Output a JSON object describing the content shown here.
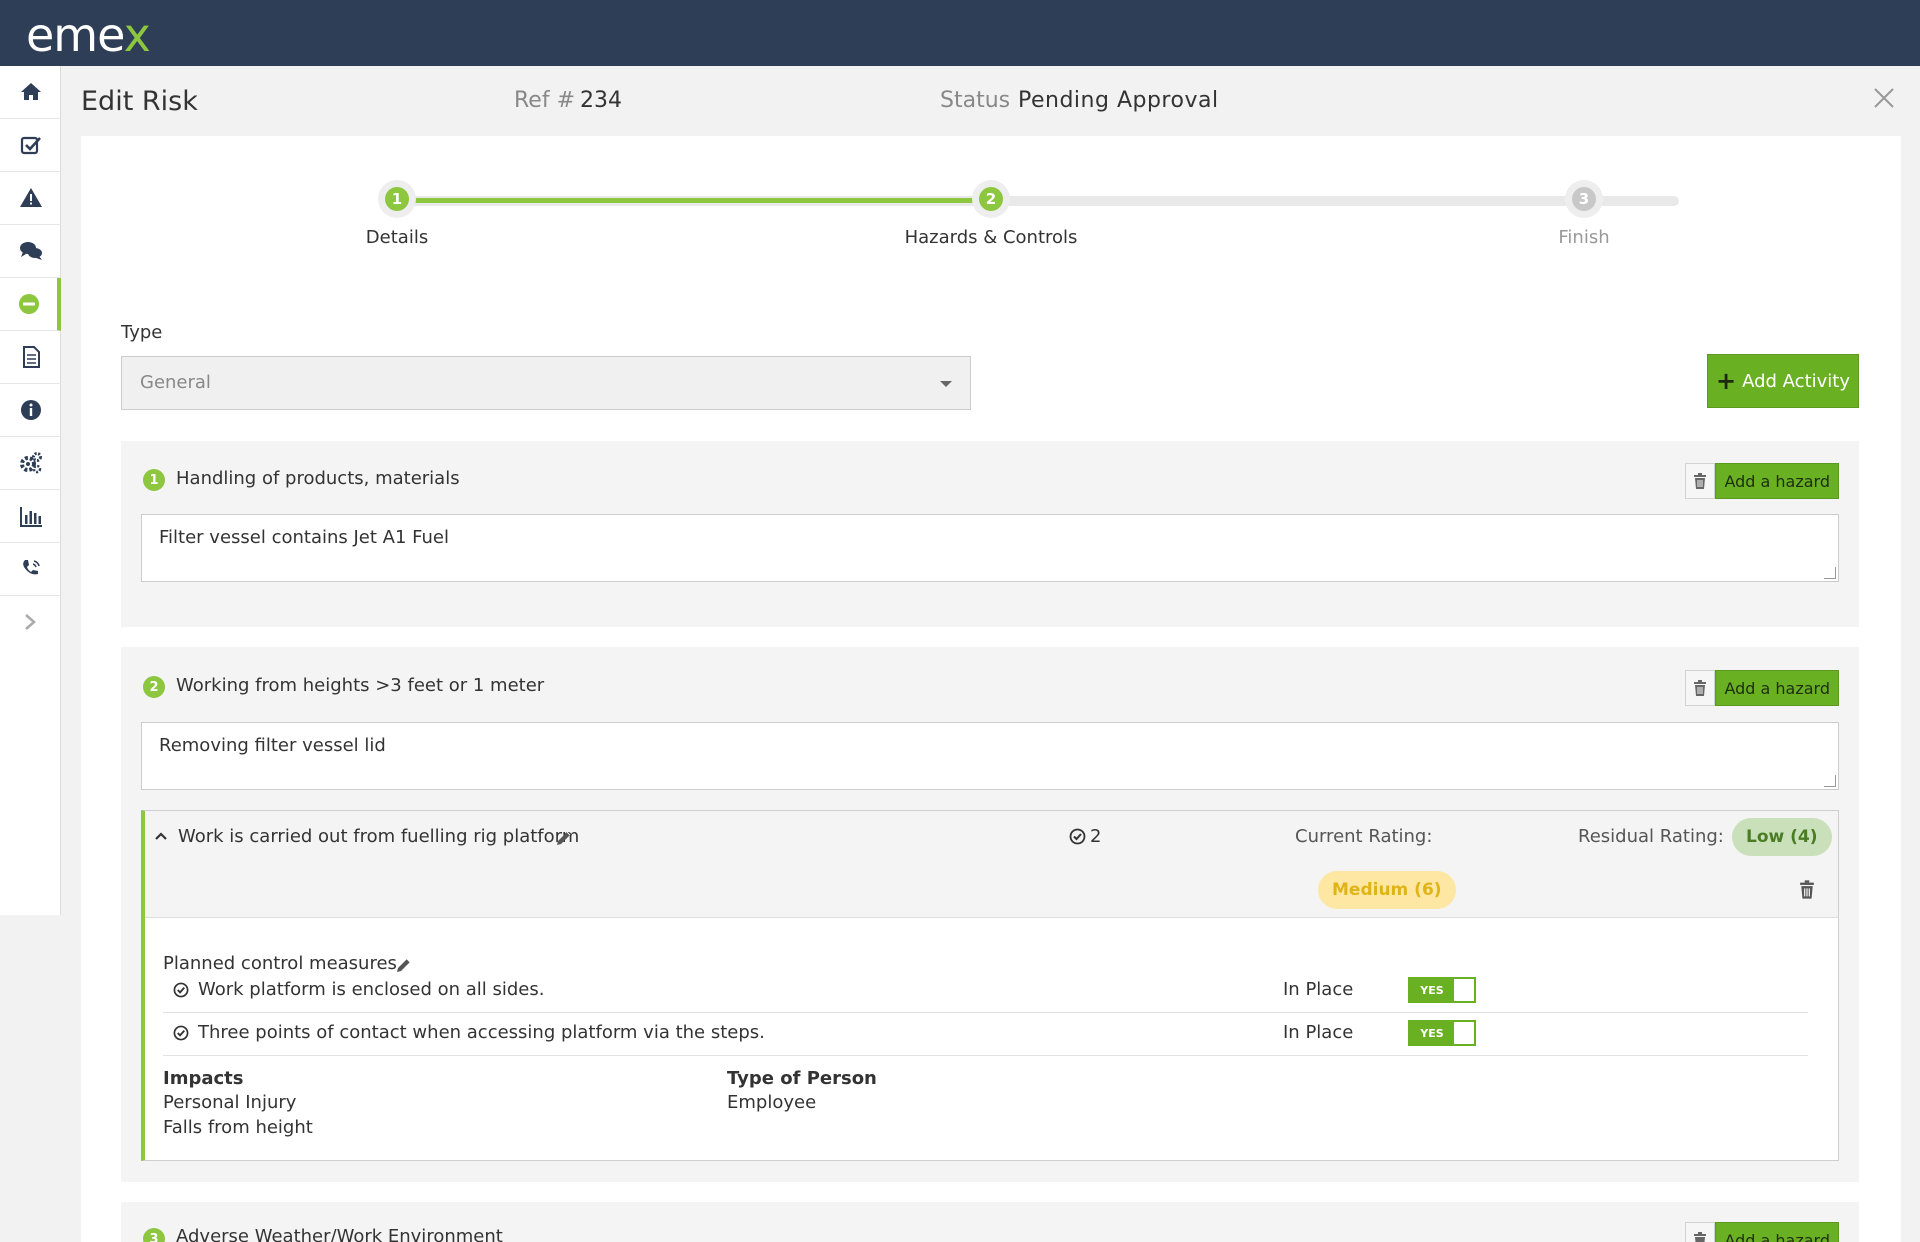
{
  "app": {
    "logo_main": "eme",
    "logo_accent": "x"
  },
  "sidebar": {
    "items": [
      {
        "icon": "home-icon"
      },
      {
        "icon": "checkbox-icon"
      },
      {
        "icon": "warning-icon"
      },
      {
        "icon": "chat-icon"
      },
      {
        "icon": "minus-circle-icon",
        "active": true
      },
      {
        "icon": "document-icon"
      },
      {
        "icon": "info-icon"
      },
      {
        "icon": "gears-icon"
      },
      {
        "icon": "bar-chart-icon"
      },
      {
        "icon": "phone-icon"
      }
    ]
  },
  "header": {
    "title": "Edit Risk",
    "ref_label": "Ref #",
    "ref_value": "234",
    "status_label": "Status",
    "status_value": "Pending Approval"
  },
  "stepper": {
    "steps": [
      {
        "number": "1",
        "label": "Details",
        "state": "complete"
      },
      {
        "number": "2",
        "label": "Hazards & Controls",
        "state": "current"
      },
      {
        "number": "3",
        "label": "Finish",
        "state": "pending"
      }
    ]
  },
  "type_field": {
    "label": "Type",
    "value": "General"
  },
  "add_activity_label": "Add Activity",
  "activities": [
    {
      "number": "1",
      "title": "Handling of products, materials",
      "description": "Filter vessel contains Jet A1 Fuel",
      "add_hazard_label": "Add a hazard"
    },
    {
      "number": "2",
      "title": "Working from heights >3 feet or 1 meter",
      "description": "Removing filter vessel lid",
      "add_hazard_label": "Add a hazard",
      "hazard": {
        "title": "Work is carried out from fuelling rig platform",
        "control_count": "2",
        "current_rating_label": "Current Rating:",
        "current_rating_value": "Medium (6)",
        "residual_rating_label": "Residual Rating:",
        "residual_rating_value": "Low (4)",
        "planned_label": "Planned control measures",
        "controls": [
          {
            "text": "Work platform is enclosed on all sides.",
            "status_label": "In Place",
            "toggle": "YES"
          },
          {
            "text": "Three points of contact when accessing platform via the steps.",
            "status_label": "In Place",
            "toggle": "YES"
          }
        ],
        "impacts_label": "Impacts",
        "impacts": [
          "Personal Injury",
          "Falls from height"
        ],
        "person_label": "Type of Person",
        "persons": [
          "Employee"
        ]
      }
    },
    {
      "number": "3",
      "title": "Adverse Weather/Work Environment",
      "add_hazard_label": "Add a hazard"
    }
  ],
  "colors": {
    "brand_green": "#8dc63f",
    "button_green": "#6ab023",
    "topbar": "#2f3e57",
    "medium": "#e0b417",
    "low": "#4a7d23"
  }
}
